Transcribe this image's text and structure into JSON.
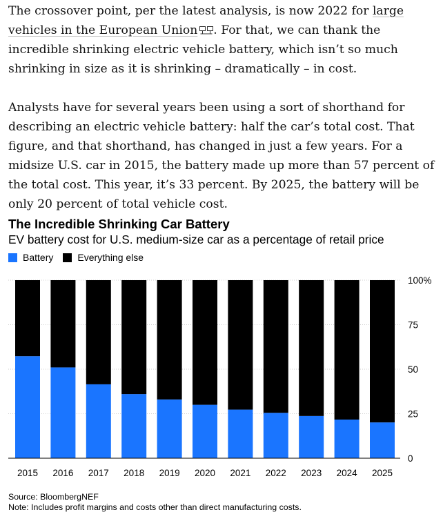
{
  "article": {
    "p1_part1": "The crossover point, per the latest analysis, is now 2022 for ",
    "p1_link": "large vehicles in the European Union",
    "p1_part2": ". For that, we can thank the incredible shrinking electric vehicle battery, which isn’t so much shrinking in size as it is shrinking – dramatically – in cost.",
    "p2": "Analysts have for several years been using a sort of shorthand for describing an electric vehicle battery: half the car’s total cost. That figure, and that shorthand, has changed in just a few years. For a midsize U.S. car in 2015, the battery made up more than 57 percent of the total cost. This year, it’s 33 percent. By 2025, the battery will be only 20 percent of total vehicle cost."
  },
  "chart_data": {
    "type": "bar",
    "stacked": true,
    "title": "The Incredible Shrinking Car Battery",
    "subtitle": "EV battery cost for U.S. medium-size car as a percentage of retail price",
    "categories": [
      "2015",
      "2016",
      "2017",
      "2018",
      "2019",
      "2020",
      "2021",
      "2022",
      "2023",
      "2024",
      "2025"
    ],
    "series": [
      {
        "name": "Battery",
        "color": "#1a75ff",
        "values": [
          57.3,
          51,
          41.5,
          36,
          33,
          30,
          27.3,
          25.5,
          23.7,
          21.7,
          20.1
        ]
      },
      {
        "name": "Everything else",
        "color": "#000000",
        "values": [
          42.7,
          49,
          58.5,
          64,
          67,
          70,
          72.7,
          74.5,
          76.3,
          78.3,
          79.9
        ]
      }
    ],
    "yticks": [
      "100%",
      "75",
      "50",
      "25",
      "0"
    ],
    "ylim": [
      0,
      100
    ],
    "xlabel": "",
    "ylabel": "",
    "legend_position": "top-left"
  },
  "source": {
    "source_line": "Source: BloombergNEF",
    "note_line": "Note: Includes profit margins and costs other than direct manufacturing costs."
  }
}
